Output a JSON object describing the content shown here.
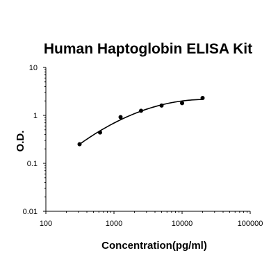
{
  "chart_data": {
    "type": "scatter",
    "title": "Human Haptoglobin ELISA Kit",
    "xlabel": "Concentration(pg/ml)",
    "ylabel": "O.D.",
    "x_scale": "log",
    "y_scale": "log",
    "xlim": [
      100,
      100000
    ],
    "ylim": [
      0.01,
      10
    ],
    "x_ticks": [
      "100",
      "1000",
      "10000",
      "100000"
    ],
    "y_ticks": [
      "0.01",
      "0.1",
      "1",
      "10"
    ],
    "grid": false,
    "legend": "none",
    "series": [
      {
        "points": [
          {
            "x": 312.5,
            "y": 0.25
          },
          {
            "x": 625,
            "y": 0.44
          },
          {
            "x": 1250,
            "y": 0.92
          },
          {
            "x": 2500,
            "y": 1.25
          },
          {
            "x": 5000,
            "y": 1.6
          },
          {
            "x": 10000,
            "y": 1.8
          },
          {
            "x": 20000,
            "y": 2.3
          }
        ],
        "fit_curve": true
      }
    ]
  }
}
